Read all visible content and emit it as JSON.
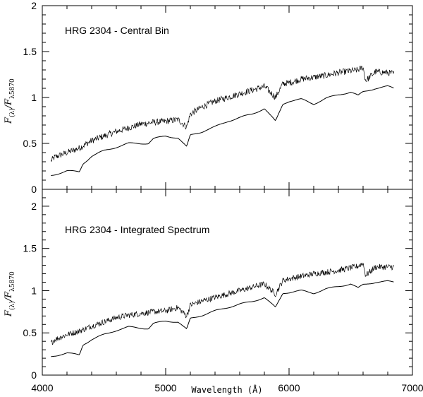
{
  "chart_data": [
    {
      "type": "line",
      "title": "HRG 2304 - Central Bin",
      "ylabel": "F(λ)/Fλ5870",
      "ylabel_main": "F",
      "ylabel_sub1": "(λ)",
      "ylabel_slash": "/F",
      "ylabel_sub2": "λ5870",
      "xlim": [
        4000,
        7000
      ],
      "ylim": [
        0,
        2
      ],
      "yticks": [
        0,
        0.5,
        1,
        1.5,
        2
      ],
      "ytick_labels": [
        "0",
        "0.5",
        "1",
        "1.5",
        "2"
      ],
      "series": [
        {
          "role": "upper-noisy",
          "x": [
            4070,
            4100,
            4200,
            4300,
            4400,
            4500,
            4600,
            4700,
            4800,
            4900,
            5000,
            5100,
            5170,
            5200,
            5300,
            5400,
            5500,
            5600,
            5700,
            5800,
            5890,
            5950,
            6000,
            6100,
            6200,
            6300,
            6400,
            6500,
            6560,
            6600,
            6620,
            6700,
            6800,
            6850
          ],
          "y": [
            0.31,
            0.35,
            0.4,
            0.45,
            0.53,
            0.58,
            0.63,
            0.67,
            0.71,
            0.73,
            0.74,
            0.76,
            0.68,
            0.82,
            0.9,
            0.96,
            1.0,
            1.04,
            1.08,
            1.12,
            1.0,
            1.15,
            1.16,
            1.2,
            1.22,
            1.24,
            1.27,
            1.29,
            1.3,
            1.33,
            1.18,
            1.28,
            1.27,
            1.26
          ]
        },
        {
          "role": "lower-smooth",
          "x": [
            4070,
            4200,
            4300,
            4330,
            4400,
            4500,
            4600,
            4700,
            4860,
            4900,
            5000,
            5100,
            5170,
            5200,
            5300,
            5400,
            5500,
            5600,
            5700,
            5800,
            5890,
            5950,
            6000,
            6100,
            6200,
            6300,
            6400,
            6500,
            6560,
            6600,
            6700,
            6800,
            6850
          ],
          "y": [
            0.15,
            0.2,
            0.19,
            0.28,
            0.36,
            0.42,
            0.46,
            0.5,
            0.5,
            0.55,
            0.58,
            0.56,
            0.46,
            0.59,
            0.63,
            0.68,
            0.74,
            0.78,
            0.82,
            0.88,
            0.74,
            0.93,
            0.96,
            0.98,
            0.93,
            0.99,
            1.03,
            1.06,
            1.02,
            1.06,
            1.1,
            1.12,
            1.1
          ]
        }
      ]
    },
    {
      "type": "line",
      "title": "HRG 2304 - Integrated Spectrum",
      "xlabel": "Wavelength (Å)",
      "ylabel": "F(λ)/Fλ5870",
      "ylabel_main": "F",
      "ylabel_sub1": "(λ)",
      "ylabel_slash": "/F",
      "ylabel_sub2": "λ5870",
      "xlim": [
        4000,
        7000
      ],
      "ylim": [
        0,
        2.2
      ],
      "xticks": [
        4000,
        5000,
        6000,
        7000
      ],
      "xtick_labels": [
        "4000",
        "5000",
        "6000",
        "7000"
      ],
      "yticks": [
        0,
        0.5,
        1,
        1.5,
        2
      ],
      "ytick_labels": [
        "0",
        "0.5",
        "1",
        "1.5",
        "2"
      ],
      "series": [
        {
          "role": "upper-noisy",
          "x": [
            4070,
            4100,
            4200,
            4300,
            4400,
            4500,
            4600,
            4700,
            4800,
            4900,
            5000,
            5100,
            5170,
            5200,
            5300,
            5400,
            5500,
            5600,
            5700,
            5800,
            5890,
            5950,
            6000,
            6100,
            6200,
            6300,
            6400,
            6500,
            6560,
            6600,
            6620,
            6700,
            6800,
            6850
          ],
          "y": [
            0.38,
            0.42,
            0.48,
            0.52,
            0.58,
            0.63,
            0.68,
            0.71,
            0.73,
            0.75,
            0.76,
            0.8,
            0.7,
            0.83,
            0.88,
            0.92,
            0.96,
            1.0,
            1.04,
            1.08,
            0.96,
            1.12,
            1.14,
            1.17,
            1.2,
            1.22,
            1.24,
            1.27,
            1.29,
            1.33,
            1.18,
            1.28,
            1.28,
            1.28
          ]
        },
        {
          "role": "lower-smooth",
          "x": [
            4070,
            4200,
            4300,
            4330,
            4400,
            4500,
            4600,
            4700,
            4860,
            4900,
            5000,
            5100,
            5170,
            5200,
            5300,
            5400,
            5500,
            5600,
            5700,
            5800,
            5890,
            5950,
            6000,
            6100,
            6200,
            6300,
            6400,
            6500,
            6560,
            6600,
            6700,
            6800,
            6850
          ],
          "y": [
            0.22,
            0.26,
            0.24,
            0.36,
            0.42,
            0.48,
            0.53,
            0.57,
            0.55,
            0.61,
            0.64,
            0.63,
            0.54,
            0.67,
            0.71,
            0.76,
            0.8,
            0.84,
            0.87,
            0.92,
            0.8,
            0.97,
            0.98,
            1.0,
            0.97,
            1.02,
            1.05,
            1.08,
            1.03,
            1.07,
            1.1,
            1.11,
            1.1
          ]
        }
      ]
    }
  ]
}
